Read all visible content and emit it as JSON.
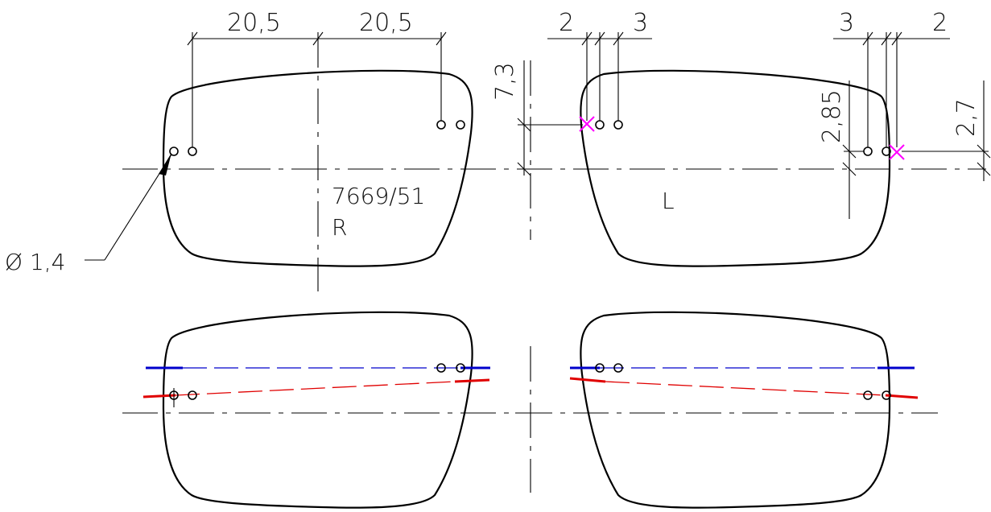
{
  "drawing": {
    "part_number": "7669/51",
    "right_lens_label": "R",
    "left_lens_label": "L",
    "dim_top_left_1": "20,5",
    "dim_top_left_2": "20,5",
    "dim_nasal_left_a": "2",
    "dim_nasal_left_b": "3",
    "dim_temple_right_a": "3",
    "dim_temple_right_b": "2",
    "dim_height_nasal": "7,3",
    "dim_height_temple_a": "2,85",
    "dim_height_temple_b": "2,7",
    "hole_diameter": "Ø 1,4"
  },
  "colors": {
    "outline": "#000000",
    "upper_drill_line": "#0000cc",
    "lower_drill_line": "#e00000",
    "reference_mark": "#ff00ff"
  }
}
